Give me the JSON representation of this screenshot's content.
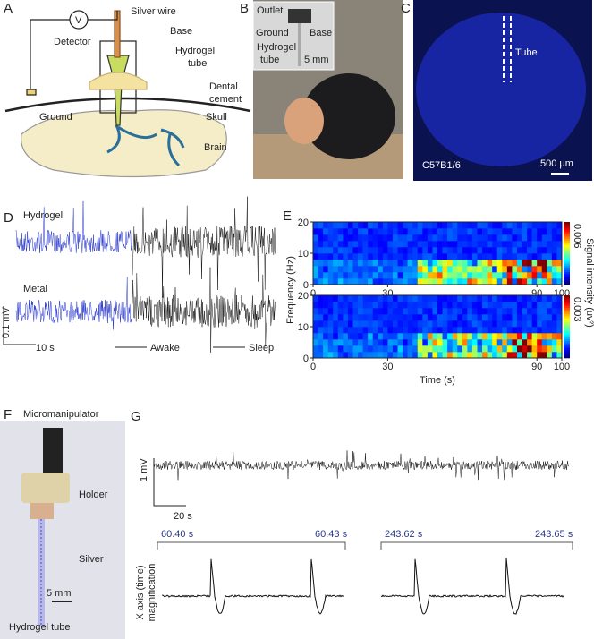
{
  "panel_labels": [
    "A",
    "B",
    "C",
    "D",
    "E",
    "F",
    "G"
  ],
  "A": {
    "detector_symbol": "V",
    "detector": "Detector",
    "silver_wire": "Silver wire",
    "base": "Base",
    "hydrogel_tube": [
      "Hydrogel",
      "tube"
    ],
    "dental_cement": [
      "Dental",
      "cement"
    ],
    "ground": "Ground",
    "skull": "Skull",
    "brain": "Brain"
  },
  "B": {
    "outlet": "Outlet",
    "ground": "Ground",
    "base": "Base",
    "hydrogel_tube": [
      "Hydrogel",
      "tube"
    ],
    "scale_bar": "5 mm"
  },
  "C": {
    "tube": "Tube",
    "strain": "C57B1/6",
    "scale_bar": "500 μm"
  },
  "D": {
    "hydrogel": "Hydrogel",
    "metal": "Metal",
    "scale_y": "0.1 mV",
    "scale_x": "10 s",
    "awake": "Awake",
    "sleep": "Sleep"
  },
  "E": {
    "y_label": "Frequency (Hz)",
    "x_label": "Time (s)",
    "colorbar_label": "Signal intensity (uv²)",
    "colorbar_max": [
      "0.006",
      "0.003"
    ],
    "xlim": [
      0,
      100
    ],
    "xticks": [
      0,
      30,
      90,
      100
    ],
    "ylim": [
      0,
      20
    ],
    "yticks": [
      0,
      10,
      20
    ]
  },
  "F": {
    "micromanipulator": "Micromanipulator",
    "holder": "Holder",
    "silver": "Silver",
    "scale_bar": "5 mm",
    "hydrogel_tube": "Hydrogel tube"
  },
  "G": {
    "scale_y": "1 mV",
    "scale_x": "20 s",
    "windows": [
      [
        "60.40 s",
        "60.43 s"
      ],
      [
        "243.62 s",
        "243.65 s"
      ]
    ],
    "y_label": [
      "X axis (time)",
      "magnification"
    ]
  }
}
